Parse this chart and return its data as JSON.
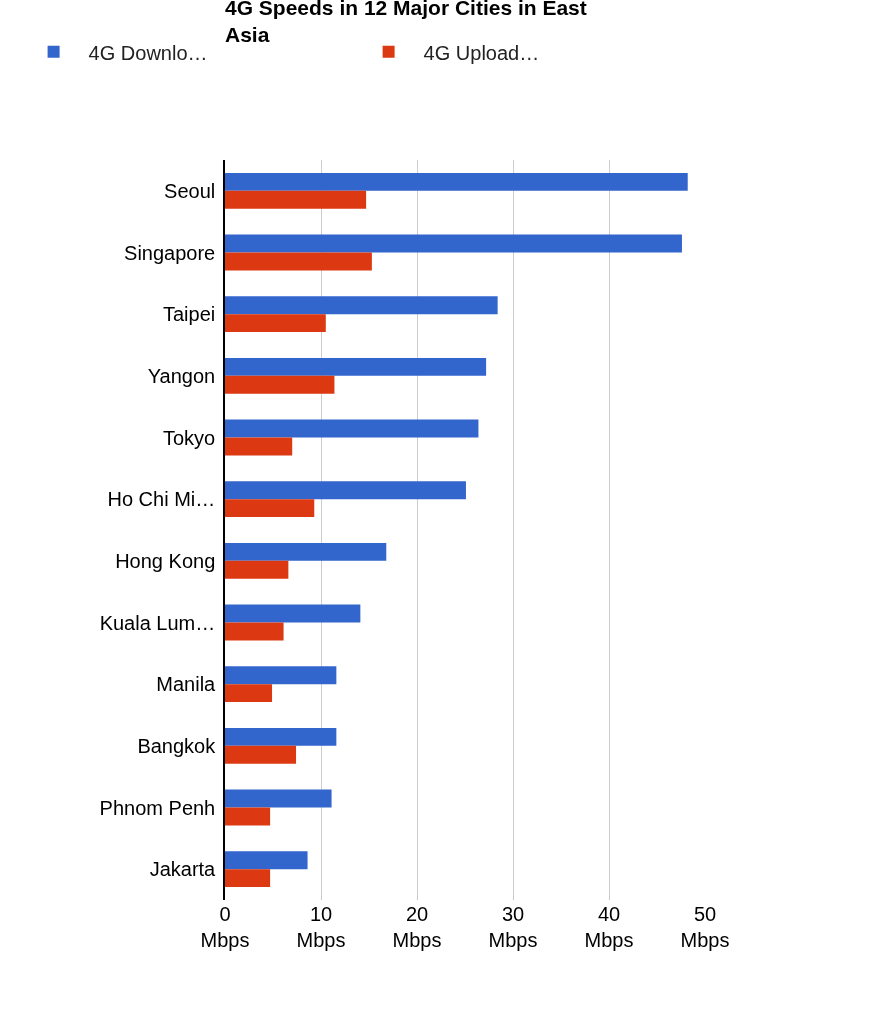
{
  "chart_data": {
    "type": "bar",
    "orientation": "horizontal",
    "title": "4G Speeds in 12 Major Cities in East Asia",
    "categories": [
      "Seoul",
      "Singapore",
      "Taipei",
      "Yangon",
      "Tokyo",
      "Ho Chi Mi…",
      "Hong Kong",
      "Kuala Lum…",
      "Manila",
      "Bangkok",
      "Phnom Penh",
      "Jakarta"
    ],
    "series": [
      {
        "name": "4G Downlo…",
        "color": "#3366cc",
        "values": [
          48.2,
          47.6,
          28.4,
          27.2,
          26.4,
          25.1,
          16.8,
          14.1,
          11.6,
          11.6,
          11.1,
          8.6
        ]
      },
      {
        "name": "4G Upload…",
        "color": "#dc3912",
        "values": [
          14.7,
          15.3,
          10.5,
          11.4,
          7.0,
          9.3,
          6.6,
          6.1,
          4.9,
          7.4,
          4.7,
          4.7
        ]
      }
    ],
    "xlim": [
      0,
      50
    ],
    "xticks": [
      {
        "value": 0,
        "label": "0\nMbps"
      },
      {
        "value": 10,
        "label": "10\nMbps"
      },
      {
        "value": 20,
        "label": "20\nMbps"
      },
      {
        "value": 30,
        "label": "30\nMbps"
      },
      {
        "value": 40,
        "label": "40\nMbps"
      },
      {
        "value": 50,
        "label": "50\nMbps"
      }
    ],
    "grid": "x",
    "legend": "top left"
  }
}
